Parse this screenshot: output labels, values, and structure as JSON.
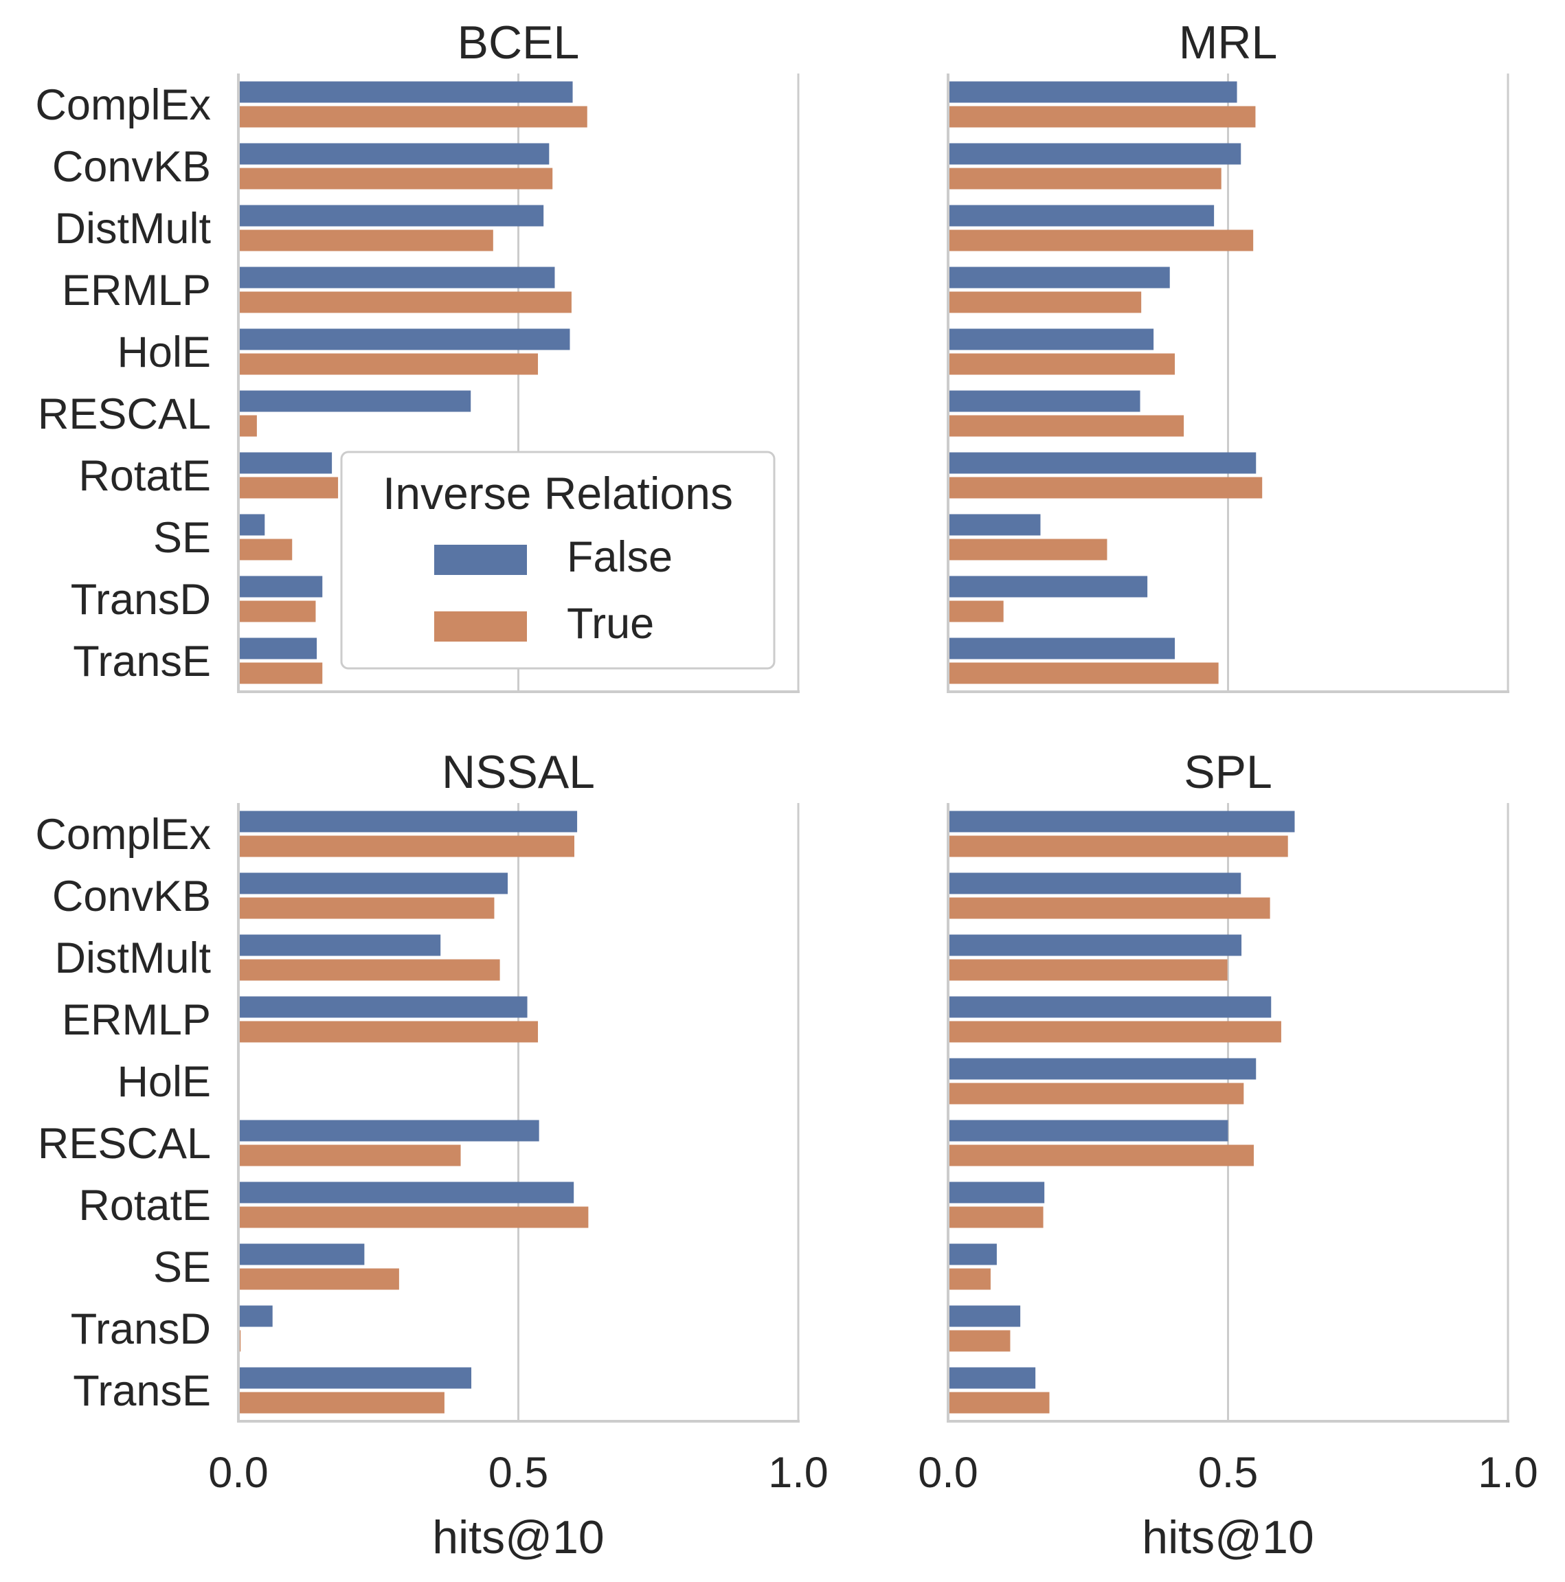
{
  "chart_data": {
    "type": "bar",
    "orientation": "horizontal",
    "grid": true,
    "xlim": [
      0,
      1
    ],
    "xticks": [
      "0.0",
      "0.5",
      "1.0"
    ],
    "xlabel": "hits@10",
    "categories": [
      "ComplEx",
      "ConvKB",
      "DistMult",
      "ERMLP",
      "HolE",
      "RESCAL",
      "RotatE",
      "SE",
      "TransD",
      "TransE"
    ],
    "legend": {
      "title": "Inverse Relations",
      "placement": "inside BCEL panel, lower-right",
      "entries": [
        "False",
        "True"
      ]
    },
    "colors": {
      "False": "#5975a4",
      "True": "#cc8963"
    },
    "panels": [
      {
        "title": "BCEL",
        "series": [
          {
            "name": "False",
            "values": [
              0.597,
              0.555,
              0.545,
              0.565,
              0.592,
              0.415,
              0.167,
              0.047,
              0.15,
              0.14
            ]
          },
          {
            "name": "True",
            "values": [
              0.623,
              0.561,
              0.455,
              0.595,
              0.535,
              0.033,
              0.178,
              0.096,
              0.138,
              0.15
            ]
          }
        ]
      },
      {
        "title": "MRL",
        "series": [
          {
            "name": "False",
            "values": [
              0.516,
              0.523,
              0.475,
              0.396,
              0.367,
              0.343,
              0.55,
              0.165,
              0.356,
              0.405
            ]
          },
          {
            "name": "True",
            "values": [
              0.549,
              0.488,
              0.545,
              0.345,
              0.405,
              0.421,
              0.561,
              0.284,
              0.099,
              0.483
            ]
          }
        ]
      },
      {
        "title": "NSSAL",
        "series": [
          {
            "name": "False",
            "values": [
              0.605,
              0.481,
              0.361,
              0.516,
              null,
              0.537,
              0.599,
              0.225,
              0.061,
              0.416
            ]
          },
          {
            "name": "True",
            "values": [
              0.6,
              0.457,
              0.467,
              0.535,
              null,
              0.397,
              0.625,
              0.287,
              0.004,
              0.368
            ]
          }
        ]
      },
      {
        "title": "SPL",
        "series": [
          {
            "name": "False",
            "values": [
              0.619,
              0.523,
              0.524,
              0.577,
              0.55,
              0.5,
              0.172,
              0.087,
              0.129,
              0.156
            ]
          },
          {
            "name": "True",
            "values": [
              0.607,
              0.575,
              0.499,
              0.595,
              0.528,
              0.546,
              0.17,
              0.076,
              0.111,
              0.181
            ]
          }
        ]
      }
    ]
  }
}
